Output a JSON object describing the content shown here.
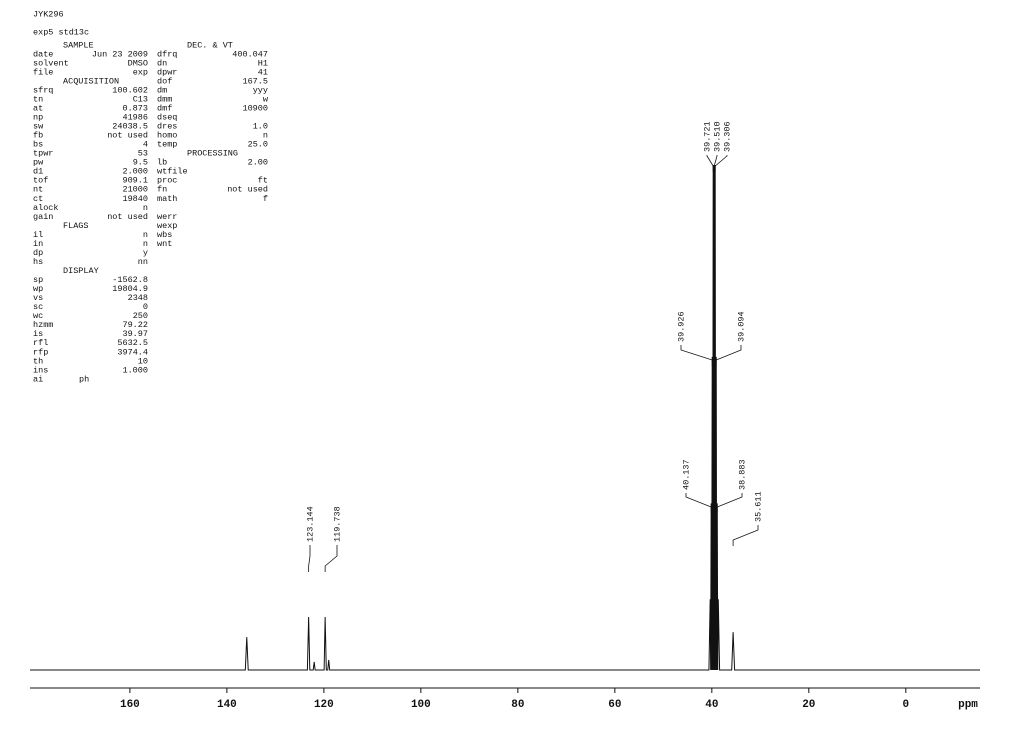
{
  "header": {
    "title": "JYK296",
    "subtitle": "exp5  std13c"
  },
  "parameters": {
    "columns": [
      [
        {
          "heading": "SAMPLE",
          "rows": [
            [
              "date",
              "Jun 23 2009"
            ],
            [
              "solvent",
              "DMSO"
            ],
            [
              "file",
              "exp"
            ]
          ]
        },
        {
          "heading": "ACQUISITION",
          "rows": [
            [
              "sfrq",
              "100.602"
            ],
            [
              "tn",
              "C13"
            ],
            [
              "at",
              "0.873"
            ],
            [
              "np",
              "41986"
            ],
            [
              "sw",
              "24038.5"
            ],
            [
              "fb",
              "not used"
            ],
            [
              "bs",
              "4"
            ],
            [
              "tpwr",
              "53"
            ],
            [
              "pw",
              "9.5"
            ],
            [
              "d1",
              "2.000"
            ],
            [
              "tof",
              "909.1"
            ],
            [
              "nt",
              "21000"
            ],
            [
              "ct",
              "19840"
            ],
            [
              "alock",
              "n"
            ],
            [
              "gain",
              "not used"
            ]
          ]
        },
        {
          "heading": "FLAGS",
          "rows": [
            [
              "il",
              "n"
            ],
            [
              "in",
              "n"
            ],
            [
              "dp",
              "y"
            ],
            [
              "hs",
              "nn"
            ]
          ]
        },
        {
          "heading": "DISPLAY",
          "rows": [
            [
              "sp",
              "-1562.8"
            ],
            [
              "wp",
              "19804.9"
            ],
            [
              "vs",
              "2348"
            ],
            [
              "sc",
              "0"
            ],
            [
              "wc",
              "250"
            ],
            [
              "hzmm",
              "79.22"
            ],
            [
              "is",
              "39.97"
            ],
            [
              "rfl",
              "5632.5"
            ],
            [
              "rfp",
              "3974.4"
            ],
            [
              "th",
              "10"
            ],
            [
              "ins",
              "1.000"
            ],
            [
              "ai",
              "ph"
            ]
          ]
        }
      ],
      [
        {
          "heading": "DEC. & VT",
          "rows": [
            [
              "dfrq",
              "400.047"
            ],
            [
              "dn",
              "H1"
            ],
            [
              "dpwr",
              "41"
            ],
            [
              "dof",
              "167.5"
            ],
            [
              "dm",
              "yyy"
            ],
            [
              "dmm",
              "w"
            ],
            [
              "dmf",
              "10900"
            ],
            [
              "dseq"
            ],
            [
              "dres",
              "1.0"
            ],
            [
              "homo",
              "n"
            ],
            [
              "temp",
              "25.0"
            ]
          ]
        },
        {
          "heading": "PROCESSING",
          "rows": [
            [
              "lb",
              "2.00"
            ],
            [
              "wtfile"
            ],
            [
              "proc",
              "ft"
            ],
            [
              "fn",
              "not used"
            ],
            [
              "math",
              "f"
            ]
          ]
        },
        {
          "rows": [
            [
              "werr"
            ],
            [
              "wexp"
            ],
            [
              "wbs"
            ],
            [
              "wnt"
            ]
          ]
        }
      ]
    ]
  },
  "chart_data": {
    "type": "line",
    "xlabel": "ppm",
    "color": "#000000",
    "x": [
      180.6,
      136.2,
      135.9,
      135.6,
      123.4,
      123.144,
      122.9,
      122.2,
      122.0,
      121.8,
      119.95,
      119.738,
      119.5,
      119.2,
      119.0,
      118.8,
      40.6,
      40.34,
      40.24,
      40.137,
      40.03,
      39.926,
      39.82,
      39.721,
      39.61,
      39.51,
      39.41,
      39.306,
      39.2,
      39.094,
      38.99,
      38.883,
      38.78,
      38.67,
      38.4,
      35.9,
      35.611,
      35.3,
      -15.3
    ],
    "values": [
      0,
      0,
      6.5,
      0,
      0,
      10.5,
      0,
      0,
      1.6,
      0,
      0,
      10.5,
      0,
      0,
      2,
      0,
      0,
      14,
      0,
      33,
      0,
      62,
      0,
      100,
      0,
      100,
      0,
      100,
      0,
      62,
      0,
      33,
      0,
      14,
      0,
      0,
      7.5,
      0,
      0
    ],
    "xlim": [
      180.6,
      -15.3
    ],
    "ylim": [
      0,
      100
    ],
    "xticks": [
      160,
      140,
      120,
      100,
      80,
      60,
      40,
      20,
      0
    ],
    "peak_labels": [
      123.144,
      119.738,
      39.721,
      {
        "value": 39.51,
        "label": "39.510"
      },
      39.306,
      39.926,
      39.094,
      40.137,
      38.883,
      35.611
    ]
  }
}
